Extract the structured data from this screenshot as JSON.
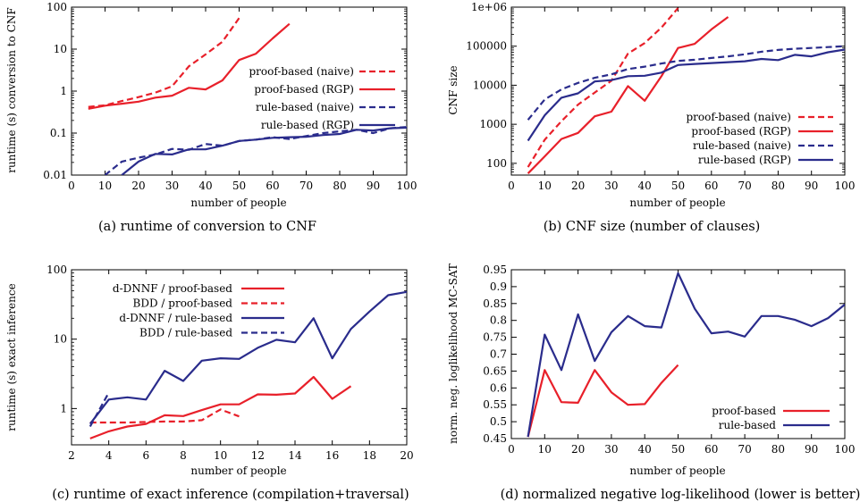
{
  "panels": [
    {
      "id": "a",
      "caption": "(a) runtime of conversion to CNF",
      "chart_data": {
        "type": "line",
        "xlabel": "number of people",
        "ylabel": "runtime (s) conversion to CNF",
        "xlim": [
          0,
          100
        ],
        "ylim": [
          0.01,
          100
        ],
        "yscale": "log",
        "xticks": [
          0,
          10,
          20,
          30,
          40,
          50,
          60,
          70,
          80,
          90,
          100
        ],
        "yticks": [
          0.01,
          0.1,
          1,
          10,
          100
        ],
        "yticklabels": [
          "0.01",
          "0.1",
          "1",
          "10",
          "100"
        ],
        "legend_position": "right",
        "series": [
          {
            "name": "proof-based (naive)",
            "color": "#e8202a",
            "dash": true,
            "x": [
              5,
              10,
              15,
              20,
              25,
              30,
              35,
              40,
              45,
              50
            ],
            "y": [
              0.42,
              0.46,
              0.58,
              0.72,
              0.92,
              1.3,
              3.9,
              7.5,
              15,
              55
            ]
          },
          {
            "name": "proof-based (RGP)",
            "color": "#e8202a",
            "dash": false,
            "x": [
              5,
              10,
              15,
              20,
              25,
              30,
              35,
              40,
              45,
              50,
              55,
              60,
              65
            ],
            "y": [
              0.38,
              0.45,
              0.5,
              0.56,
              0.7,
              0.78,
              1.2,
              1.1,
              1.8,
              5.5,
              7.8,
              18,
              40
            ]
          },
          {
            "name": "rule-based (naive)",
            "color": "#2a2c8c",
            "dash": true,
            "x": [
              10,
              15,
              20,
              25,
              30,
              35,
              40,
              45,
              50,
              55,
              60,
              65,
              70,
              75,
              80,
              85,
              90,
              95,
              100
            ],
            "y": [
              0.01,
              0.021,
              0.026,
              0.031,
              0.042,
              0.04,
              0.055,
              0.05,
              0.065,
              0.07,
              0.08,
              0.072,
              0.085,
              0.1,
              0.11,
              0.12,
              0.1,
              0.13,
              0.14
            ]
          },
          {
            "name": "rule-based (RGP)",
            "color": "#2a2c8c",
            "dash": false,
            "x": [
              15,
              20,
              25,
              30,
              35,
              40,
              45,
              50,
              55,
              60,
              65,
              70,
              75,
              80,
              85,
              90,
              95,
              100
            ],
            "y": [
              0.01,
              0.021,
              0.032,
              0.031,
              0.041,
              0.041,
              0.05,
              0.065,
              0.07,
              0.077,
              0.08,
              0.082,
              0.09,
              0.095,
              0.12,
              0.115,
              0.13,
              0.135
            ]
          }
        ]
      }
    },
    {
      "id": "b",
      "caption": "(b) CNF size (number of clauses)",
      "chart_data": {
        "type": "line",
        "xlabel": "number of people",
        "ylabel": "CNF size",
        "xlim": [
          0,
          100
        ],
        "ylim": [
          50,
          1000000
        ],
        "yscale": "log",
        "xticks": [
          0,
          10,
          20,
          30,
          40,
          50,
          60,
          70,
          80,
          90,
          100
        ],
        "yticks": [
          100,
          1000,
          10000,
          100000,
          1000000
        ],
        "yticklabels": [
          "100",
          "1000",
          "10000",
          "100000",
          "1e+06"
        ],
        "legend_position": "right",
        "series": [
          {
            "name": "proof-based (naive)",
            "color": "#e8202a",
            "dash": true,
            "x": [
              5,
              10,
              15,
              20,
              25,
              30,
              35,
              40,
              45,
              50
            ],
            "y": [
              80,
              400,
              1200,
              3200,
              6500,
              13000,
              65000,
              120000,
              300000,
              950000
            ]
          },
          {
            "name": "proof-based (RGP)",
            "color": "#e8202a",
            "dash": false,
            "x": [
              5,
              10,
              15,
              20,
              25,
              30,
              35,
              40,
              45,
              50,
              55,
              60,
              65
            ],
            "y": [
              55,
              150,
              420,
              600,
              1600,
              2100,
              9500,
              4000,
              17000,
              90000,
              115000,
              270000,
              560000
            ]
          },
          {
            "name": "rule-based (naive)",
            "color": "#2a2c8c",
            "dash": true,
            "x": [
              5,
              10,
              15,
              20,
              25,
              30,
              35,
              40,
              45,
              50,
              55,
              60,
              65,
              70,
              75,
              80,
              85,
              90,
              95,
              100
            ],
            "y": [
              1300,
              4300,
              7800,
              11500,
              15500,
              19000,
              26000,
              30000,
              36000,
              42000,
              45000,
              50000,
              55000,
              62000,
              72000,
              80000,
              86000,
              90000,
              95000,
              100000
            ]
          },
          {
            "name": "rule-based (RGP)",
            "color": "#2a2c8c",
            "dash": false,
            "x": [
              5,
              10,
              15,
              20,
              25,
              30,
              35,
              40,
              45,
              50,
              55,
              60,
              65,
              70,
              75,
              80,
              85,
              90,
              95,
              100
            ],
            "y": [
              380,
              1700,
              4800,
              6200,
              12500,
              13500,
              17000,
              17500,
              21000,
              33000,
              35000,
              37000,
              39000,
              41000,
              47000,
              44000,
              60000,
              55000,
              70000,
              82000
            ]
          }
        ]
      }
    },
    {
      "id": "c",
      "caption": "(c) runtime of exact inference (compilation+traversal)",
      "chart_data": {
        "type": "line",
        "xlabel": "number of people",
        "ylabel": "runtime (s) exact inference",
        "xlim": [
          2,
          20
        ],
        "ylim": [
          0.3,
          100
        ],
        "yscale": "log",
        "xticks": [
          2,
          4,
          6,
          8,
          10,
          12,
          14,
          16,
          18,
          20
        ],
        "yticks": [
          1,
          10,
          100
        ],
        "yticklabels": [
          "1",
          "10",
          "100"
        ],
        "legend_position": "top-left",
        "series": [
          {
            "name": "d-DNNF / proof-based",
            "color": "#e8202a",
            "dash": false,
            "x": [
              3,
              4,
              5,
              6,
              7,
              8,
              9,
              10,
              11,
              12,
              13,
              14,
              15,
              16,
              17
            ],
            "y": [
              0.37,
              0.47,
              0.55,
              0.6,
              0.8,
              0.78,
              0.95,
              1.15,
              1.15,
              1.6,
              1.58,
              1.65,
              2.85,
              1.38,
              2.1
            ]
          },
          {
            "name": "BDD / proof-based",
            "color": "#e8202a",
            "dash": true,
            "x": [
              3,
              4,
              5,
              6,
              7,
              8,
              9,
              10,
              11
            ],
            "y": [
              0.63,
              0.63,
              0.63,
              0.64,
              0.65,
              0.65,
              0.68,
              0.97,
              0.77
            ]
          },
          {
            "name": "d-DNNF / rule-based",
            "color": "#2a2c8c",
            "dash": false,
            "x": [
              3,
              4,
              5,
              6,
              7,
              8,
              9,
              10,
              11,
              12,
              13,
              14,
              15,
              16,
              17,
              18,
              19,
              20
            ],
            "y": [
              0.6,
              1.35,
              1.45,
              1.35,
              3.5,
              2.5,
              4.9,
              5.3,
              5.2,
              7.5,
              9.8,
              9,
              20,
              5.3,
              14,
              25,
              43,
              48
            ]
          },
          {
            "name": "BDD / rule-based",
            "color": "#2a2c8c",
            "dash": true,
            "x": [
              3,
              4
            ],
            "y": [
              0.55,
              1.7
            ]
          }
        ]
      }
    },
    {
      "id": "d",
      "caption": "(d) normalized negative log-likelihood (lower is better)",
      "chart_data": {
        "type": "line",
        "xlabel": "number of people",
        "ylabel": "norm. neg. loglikelihood MC-SAT",
        "xlim": [
          0,
          100
        ],
        "ylim": [
          0.45,
          0.95
        ],
        "yscale": "linear",
        "xticks": [
          0,
          10,
          20,
          30,
          40,
          50,
          60,
          70,
          80,
          90,
          100
        ],
        "yticks": [
          0.45,
          0.5,
          0.55,
          0.6,
          0.65,
          0.7,
          0.75,
          0.8,
          0.85,
          0.9,
          0.95
        ],
        "yticklabels": [
          "0.45",
          "0.5",
          "0.55",
          "0.6",
          "0.65",
          "0.7",
          "0.75",
          "0.8",
          "0.85",
          "0.9",
          "0.95"
        ],
        "legend_position": "bottom-right",
        "series": [
          {
            "name": "proof-based",
            "color": "#e8202a",
            "dash": false,
            "x": [
              5,
              10,
              15,
              20,
              25,
              30,
              35,
              40,
              45,
              50
            ],
            "y": [
              0.455,
              0.653,
              0.558,
              0.556,
              0.653,
              0.587,
              0.55,
              0.552,
              0.615,
              0.668
            ]
          },
          {
            "name": "rule-based",
            "color": "#2a2c8c",
            "dash": false,
            "x": [
              5,
              10,
              15,
              20,
              25,
              30,
              35,
              40,
              45,
              50,
              55,
              60,
              65,
              70,
              75,
              80,
              85,
              90,
              95,
              100
            ],
            "y": [
              0.455,
              0.758,
              0.653,
              0.818,
              0.68,
              0.765,
              0.813,
              0.783,
              0.779,
              0.94,
              0.835,
              0.762,
              0.767,
              0.752,
              0.813,
              0.813,
              0.802,
              0.783,
              0.807,
              0.847
            ]
          }
        ]
      }
    }
  ]
}
